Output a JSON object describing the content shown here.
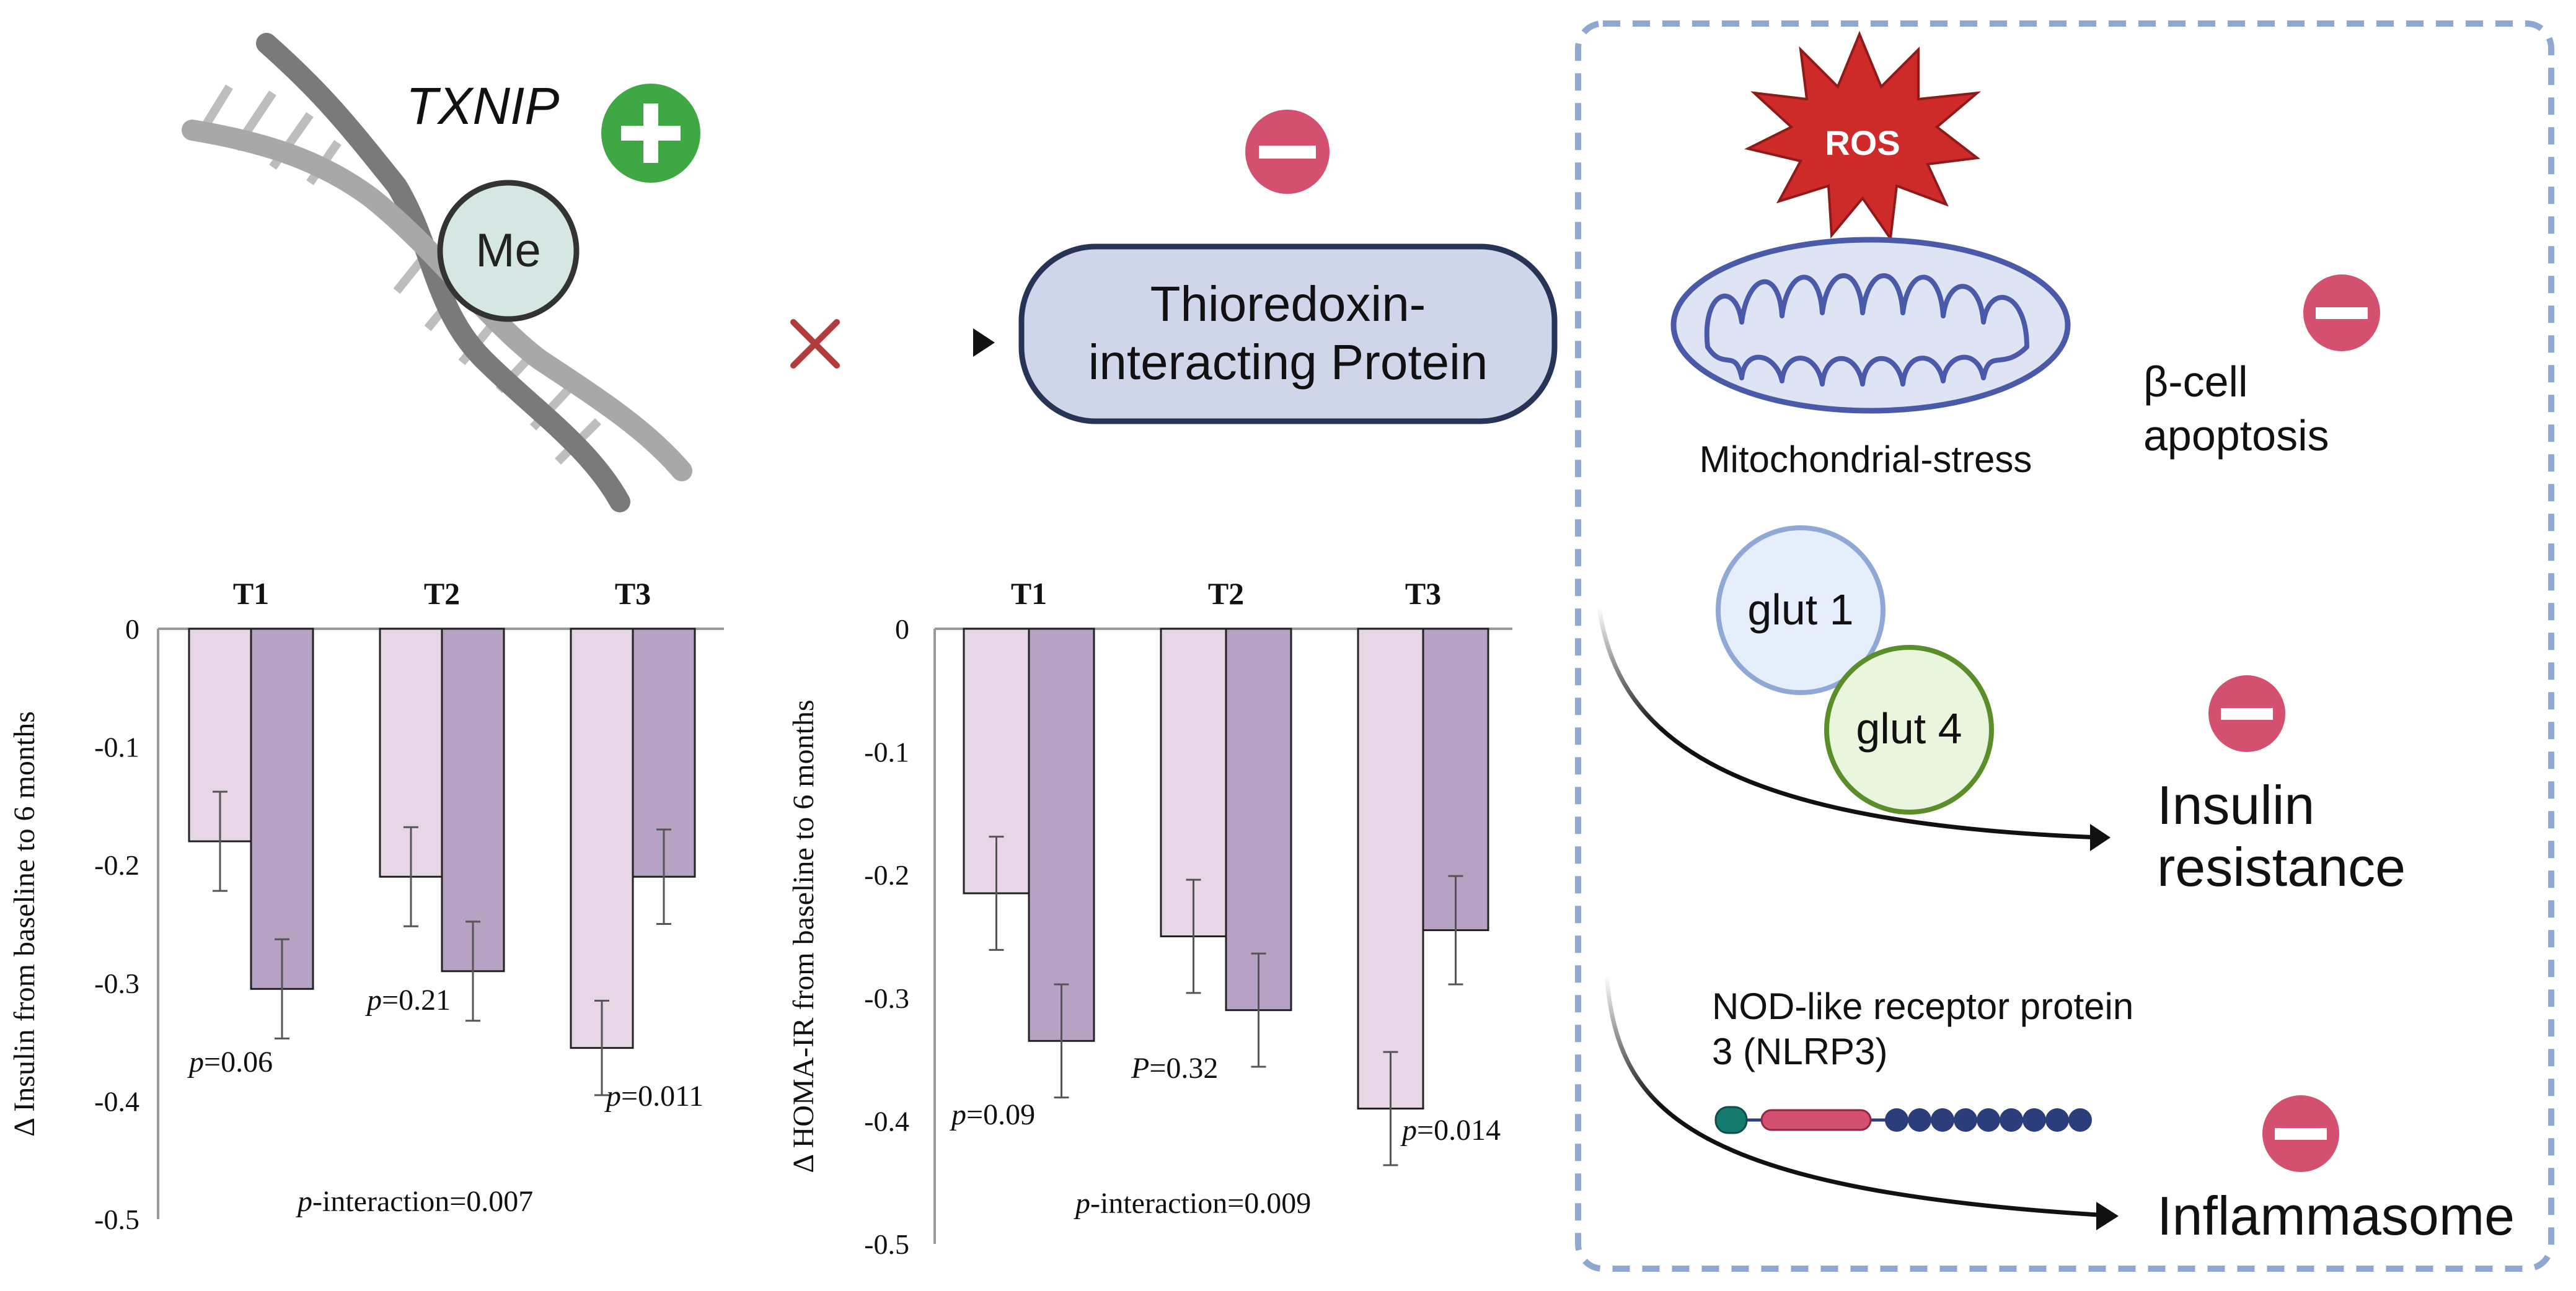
{
  "colors": {
    "dna_dark": "#6f6f6f",
    "dna_light": "#a9a9a9",
    "plus_green": "#3fa844",
    "minus_red": "#d4506f",
    "txnip_box_fill": "#cfd6ea",
    "txnip_box_stroke": "#273456",
    "dash_border": "#8fa8d0",
    "ros_red": "#cf2a2a",
    "mito_fill": "#dfe4f5",
    "mito_stroke": "#4a5aa8",
    "glut1_fill": "#e6eefb",
    "glut1_stroke": "#8fa8d6",
    "glut4_fill": "#e9f5dd",
    "glut4_stroke": "#5a8e2a",
    "bar_light": "#e6d6e6",
    "bar_dark": "#b6a3c3",
    "nlrp3_teal": "#157a6e",
    "nlrp3_pink": "#d4506f",
    "nlrp3_navy": "#2c3d7b"
  },
  "diagram": {
    "gene_label": "TXNIP",
    "methyl_label": "Me",
    "protein_label_line1": "Thioredoxin-",
    "protein_label_line2": "interacting Protein",
    "ros_label": "ROS",
    "mito_label": "Mitochondrial-stress",
    "beta_line1": "β-cell",
    "beta_line2": "apoptosis",
    "glut1_label": "glut 1",
    "glut4_label": "glut 4",
    "insulin_line1": "Insulin",
    "insulin_line2": "resistance",
    "nlrp3_line1": "NOD-like receptor protein",
    "nlrp3_line2": "3 (NLRP3)",
    "inflammasome_label": "Inflammasome",
    "icons": [
      "dna-helix-icon",
      "plus-icon",
      "minus-icon",
      "cross-icon",
      "ros-burst-icon",
      "mitochondrion-icon"
    ]
  },
  "chart_data": [
    {
      "type": "bar",
      "categories": [
        "T1",
        "T2",
        "T3"
      ],
      "series": [
        {
          "name": "series-1",
          "color": "#e6d6e6",
          "values": [
            -0.18,
            -0.21,
            -0.355
          ],
          "errors": [
            0.042,
            0.042,
            0.04
          ]
        },
        {
          "name": "series-2",
          "color": "#b6a3c3",
          "values": [
            -0.305,
            -0.29,
            -0.21
          ],
          "errors": [
            0.042,
            0.042,
            0.04
          ]
        }
      ],
      "ylabel": "Δ Insulin from baseline to 6 months",
      "ylim": [
        -0.5,
        0
      ],
      "yticks": [
        0,
        -0.1,
        -0.2,
        -0.3,
        -0.4,
        -0.5
      ],
      "ytick_labels": [
        "0",
        "-0.1",
        "-0.2",
        "-0.3",
        "-0.4",
        "-0.5"
      ],
      "pvalues": [
        {
          "prefix": "p",
          "text": "=0.06"
        },
        {
          "prefix": "p",
          "text": "=0.21"
        },
        {
          "prefix": "p",
          "text": "=0.011"
        }
      ],
      "interaction": {
        "prefix": "p",
        "text": "-interaction=0.007"
      }
    },
    {
      "type": "bar",
      "categories": [
        "T1",
        "T2",
        "T3"
      ],
      "series": [
        {
          "name": "series-1",
          "color": "#e6d6e6",
          "values": [
            -0.215,
            -0.25,
            -0.39
          ],
          "errors": [
            0.046,
            0.046,
            0.046
          ]
        },
        {
          "name": "series-2",
          "color": "#b6a3c3",
          "values": [
            -0.335,
            -0.31,
            -0.245
          ],
          "errors": [
            0.046,
            0.046,
            0.044
          ]
        }
      ],
      "ylabel": "Δ HOMA-IR from baseline to 6 months",
      "ylim": [
        -0.5,
        0
      ],
      "yticks": [
        0,
        -0.1,
        -0.2,
        -0.3,
        -0.4,
        -0.5
      ],
      "ytick_labels": [
        "0",
        "-0.1",
        "-0.2",
        "-0.3",
        "-0.4",
        "-0.5"
      ],
      "pvalues": [
        {
          "prefix": "p",
          "text": "=0.09"
        },
        {
          "prefix": "P",
          "text": "=0.32"
        },
        {
          "prefix": "p",
          "text": "=0.014"
        }
      ],
      "interaction": {
        "prefix": "p",
        "text": "-interaction=0.009"
      }
    }
  ]
}
